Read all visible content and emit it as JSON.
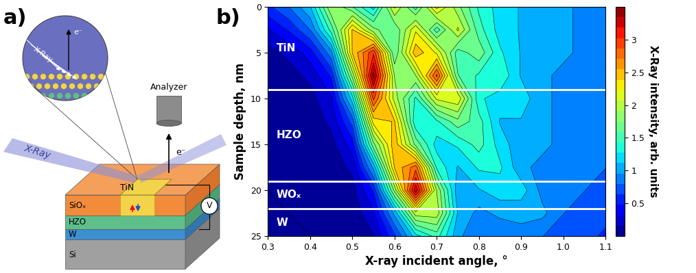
{
  "panel_a": {
    "label": "a)",
    "diagram": {
      "inset_beam": "X-Ray",
      "inset_electron": "e⁻",
      "beam": "X-Ray",
      "electron": "e⁻",
      "analyzer": "Analyzer",
      "voltmeter": "V",
      "layers": [
        "SiOₓ",
        "TiN",
        "HZO",
        "W",
        "Si"
      ]
    }
  },
  "chart_data": {
    "type": "contour",
    "panel_label": "b)",
    "x_label": "X-ray incident angle, °",
    "y_label": "Sample depth, nm",
    "xlim": [
      0.3,
      1.1
    ],
    "xticks": [
      0.3,
      0.4,
      0.5,
      0.6,
      0.7,
      0.8,
      0.9,
      1.0,
      1.1
    ],
    "ylim": [
      25,
      0
    ],
    "yticks": [
      0,
      5,
      10,
      15,
      20,
      25
    ],
    "layer_boundaries": [
      9,
      19,
      22
    ],
    "layer_labels": [
      "TiN",
      "HZO",
      "WOₓ",
      "W"
    ],
    "x": [
      0.3,
      0.35,
      0.4,
      0.45,
      0.5,
      0.55,
      0.6,
      0.65,
      0.7,
      0.75,
      0.8,
      0.85,
      0.9,
      0.95,
      1.0,
      1.05,
      1.1
    ],
    "y": [
      0,
      2.5,
      5,
      7.5,
      10,
      12.5,
      15,
      17.5,
      20,
      22.5,
      25
    ],
    "z": [
      [
        0.6,
        0.8,
        1.1,
        1.9,
        1.6,
        1.2,
        2.1,
        1.5,
        2.3,
        1.8,
        1.4,
        1.2,
        1.1,
        1.0,
        1.0,
        0.9,
        0.9
      ],
      [
        0.3,
        0.5,
        0.8,
        1.5,
        2.4,
        1.8,
        1.6,
        2.2,
        1.5,
        2.1,
        1.5,
        1.2,
        1.1,
        1.0,
        1.0,
        0.9,
        0.9
      ],
      [
        0.1,
        0.2,
        0.4,
        0.9,
        2.4,
        3.0,
        1.6,
        2.5,
        2.2,
        1.5,
        1.7,
        1.3,
        1.1,
        1.0,
        1.0,
        0.9,
        0.8
      ],
      [
        0.05,
        0.1,
        0.2,
        0.5,
        1.8,
        3.4,
        1.9,
        1.9,
        2.9,
        1.6,
        1.4,
        1.4,
        1.1,
        1.0,
        0.9,
        0.9,
        0.8
      ],
      [
        0.03,
        0.05,
        0.1,
        0.3,
        1.2,
        2.9,
        2.0,
        1.4,
        2.1,
        2.2,
        1.3,
        1.2,
        1.2,
        1.0,
        0.9,
        0.9,
        0.8
      ],
      [
        0.02,
        0.03,
        0.06,
        0.2,
        0.7,
        2.3,
        2.4,
        1.3,
        1.4,
        1.7,
        1.5,
        1.1,
        1.1,
        1.0,
        0.9,
        0.8,
        0.8
      ],
      [
        0.01,
        0.02,
        0.04,
        0.1,
        0.4,
        1.7,
        2.5,
        1.7,
        1.2,
        1.3,
        1.5,
        1.2,
        1.0,
        1.0,
        0.9,
        0.8,
        0.8
      ],
      [
        0.01,
        0.01,
        0.02,
        0.06,
        0.2,
        1.0,
        2.4,
        2.8,
        1.4,
        1.1,
        1.3,
        1.3,
        1.0,
        0.9,
        0.9,
        0.8,
        0.8
      ],
      [
        0.0,
        0.01,
        0.01,
        0.03,
        0.1,
        0.5,
        1.8,
        3.3,
        1.9,
        1.0,
        1.1,
        1.2,
        1.2,
        0.9,
        0.8,
        0.8,
        0.7
      ],
      [
        0.0,
        0.0,
        0.01,
        0.02,
        0.05,
        0.3,
        1.0,
        2.0,
        2.0,
        1.1,
        0.9,
        1.0,
        1.0,
        1.0,
        0.8,
        0.7,
        0.7
      ],
      [
        0.0,
        0.0,
        0.0,
        0.01,
        0.03,
        0.15,
        0.6,
        1.2,
        1.5,
        1.0,
        0.8,
        0.8,
        0.9,
        0.8,
        0.7,
        0.7,
        0.6
      ]
    ],
    "colorbar": {
      "label": "X-Ray intensity, arb. units",
      "range": [
        0,
        3.5
      ],
      "ticks": [
        0.5,
        1,
        1.5,
        2,
        2.5,
        3
      ]
    }
  }
}
